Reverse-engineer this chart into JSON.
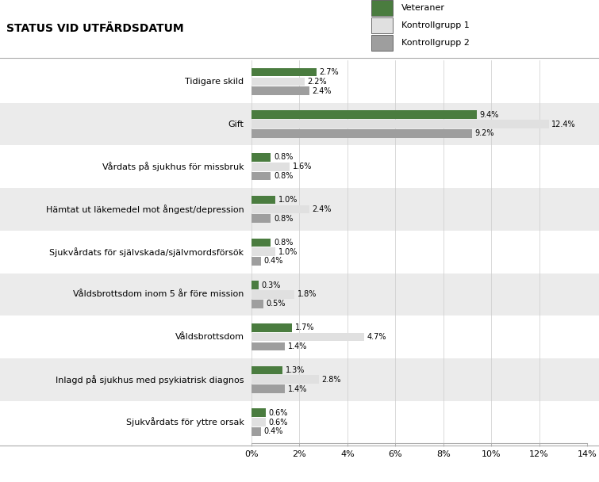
{
  "title": "STATUS VID UTFÄRDSDATUM",
  "categories": [
    "Tidigare skild",
    "Gift",
    "Vårdats på sjukhus för missbruk",
    "Hämtat ut läkemedel mot ångest/depression",
    "Sjukvårdats för självskada/självmordsförsök",
    "Våldsbrottsdom inom 5 år före mission",
    "Våldsbrottsdom",
    "Inlagd på sjukhus med psykiatrisk diagnos",
    "Sjukvårdats för yttre orsak"
  ],
  "series": {
    "Veteraner": [
      2.7,
      9.4,
      0.8,
      1.0,
      0.8,
      0.3,
      1.7,
      1.3,
      0.6
    ],
    "Kontrollgrupp 1": [
      2.2,
      12.4,
      1.6,
      2.4,
      1.0,
      1.8,
      4.7,
      2.8,
      0.6
    ],
    "Kontrollgrupp 2": [
      2.4,
      9.2,
      0.8,
      0.8,
      0.4,
      0.5,
      1.4,
      1.4,
      0.4
    ]
  },
  "colors": {
    "Veteraner": "#4a7c3f",
    "Kontrollgrupp 1": "#e0e0e0",
    "Kontrollgrupp 2": "#9e9e9e"
  },
  "xlim": [
    0,
    14
  ],
  "xticks": [
    0,
    2,
    4,
    6,
    8,
    10,
    12,
    14
  ],
  "xtick_labels": [
    "0%",
    "2%",
    "4%",
    "6%",
    "8%",
    "10%",
    "12%",
    "14%"
  ],
  "bar_height": 0.22,
  "title_fontsize": 10,
  "label_fontsize": 8,
  "tick_fontsize": 8,
  "value_fontsize": 7,
  "legend_fontsize": 8,
  "title_bg": "#c8c8c8",
  "row_colors": [
    "#ffffff",
    "#ebebeb"
  ],
  "border_color": "#aaaaaa"
}
